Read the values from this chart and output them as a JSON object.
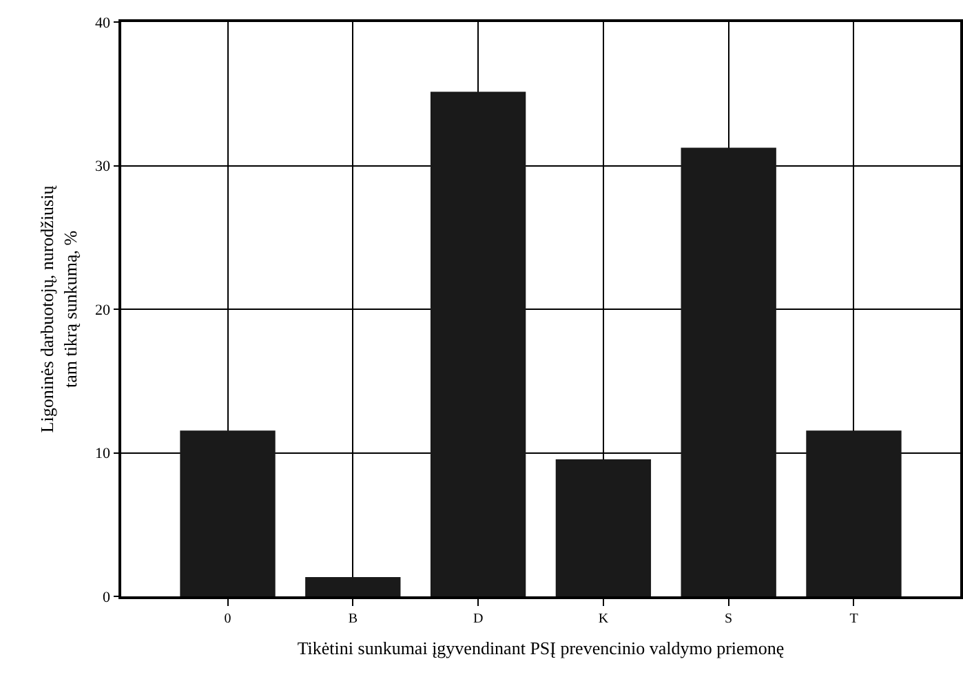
{
  "chart_data": {
    "type": "bar",
    "xlabel": "Tikėtini sunkumai įgyvendinant PSĮ prevencinio valdymo priemonę",
    "ylabel": "Ligoninės darbuotojų, nurodžiusių\ntam tikrą sunkumą, %",
    "categories": [
      "0",
      "B",
      "D",
      "K",
      "S",
      "T"
    ],
    "values": [
      11.5,
      1.3,
      35.1,
      9.5,
      31.2,
      11.5
    ],
    "color": "#1a1a1a",
    "ylim": [
      0,
      40
    ],
    "yticks": [
      0,
      10,
      20,
      30,
      40
    ],
    "grid": true
  }
}
